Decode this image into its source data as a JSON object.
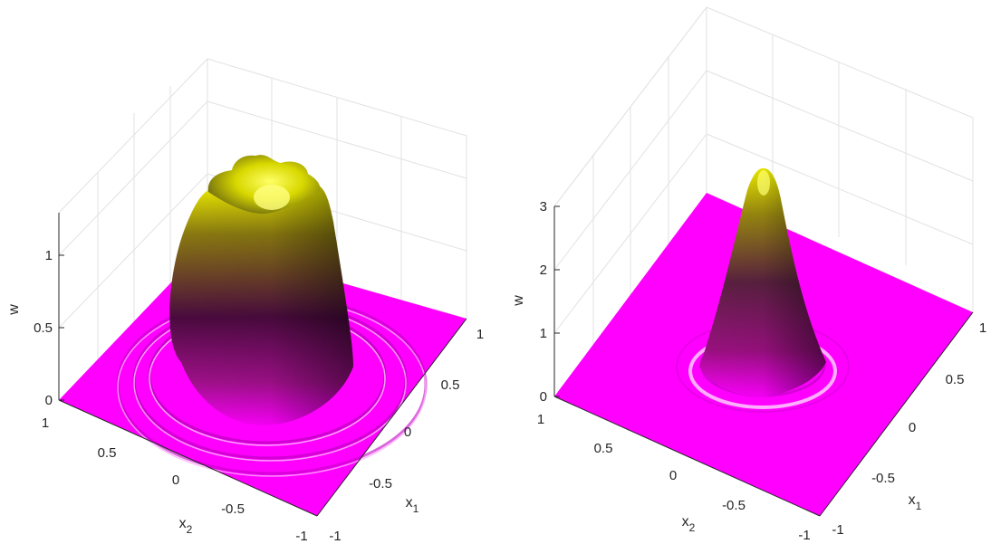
{
  "chart_data": [
    {
      "type": "surface",
      "zlabel": "w",
      "xlabel": "x",
      "xlabel_sub": "1",
      "ylabel": "x",
      "ylabel_sub": "2",
      "x_ticks": [
        "-1",
        "-0.5",
        "0",
        "0.5",
        "1"
      ],
      "y_ticks": [
        "-1",
        "-0.5",
        "0",
        "0.5",
        "1"
      ],
      "z_ticks": [
        "0",
        "0.5",
        "1"
      ],
      "xlim": [
        -1,
        1
      ],
      "ylim": [
        -1,
        1
      ],
      "zlim": [
        0,
        1.3
      ],
      "colormap": [
        "#ff00ff",
        "#4a0a3e",
        "#f0f000"
      ],
      "grid": true,
      "peak_value": 1.2,
      "shape": "flat-topped plateau with ripple rings"
    },
    {
      "type": "surface",
      "zlabel": "w",
      "xlabel": "x",
      "xlabel_sub": "1",
      "ylabel": "x",
      "ylabel_sub": "2",
      "x_ticks": [
        "-1",
        "-0.5",
        "0",
        "0.5",
        "1"
      ],
      "y_ticks": [
        "-1",
        "-0.5",
        "0",
        "0.5",
        "1"
      ],
      "z_ticks": [
        "0",
        "1",
        "2",
        "3"
      ],
      "xlim": [
        -1,
        1
      ],
      "ylim": [
        -1,
        1
      ],
      "zlim": [
        0,
        3
      ],
      "colormap": [
        "#ff00ff",
        "#4a0a3e",
        "#f0f000"
      ],
      "grid": true,
      "peak_value": 3.4,
      "shape": "single gaussian peak with faint ripple rings"
    }
  ]
}
